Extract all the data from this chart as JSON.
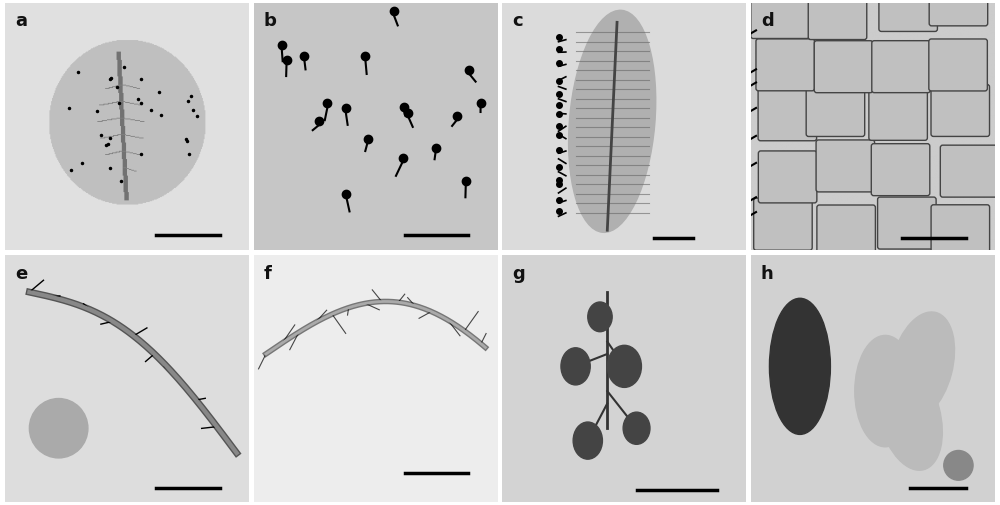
{
  "labels": [
    "a",
    "b",
    "c",
    "d",
    "e",
    "f",
    "g",
    "h"
  ],
  "grid_rows": 2,
  "grid_cols": 4,
  "background_color": "#e8e8e8",
  "label_color": "#111111",
  "label_fontsize": 13,
  "label_fontweight": "bold",
  "scalebar_color": "#111111",
  "scalebar_linewidth": 2.5,
  "figure_bg": "#ffffff",
  "panel_backgrounds": [
    "#d8d8d8",
    "#c8c8c8",
    "#d0d0d0",
    "#c4c4c4",
    "#d4d4d4",
    "#e0e0e0",
    "#b8b8b8",
    "#c0c0c0"
  ]
}
